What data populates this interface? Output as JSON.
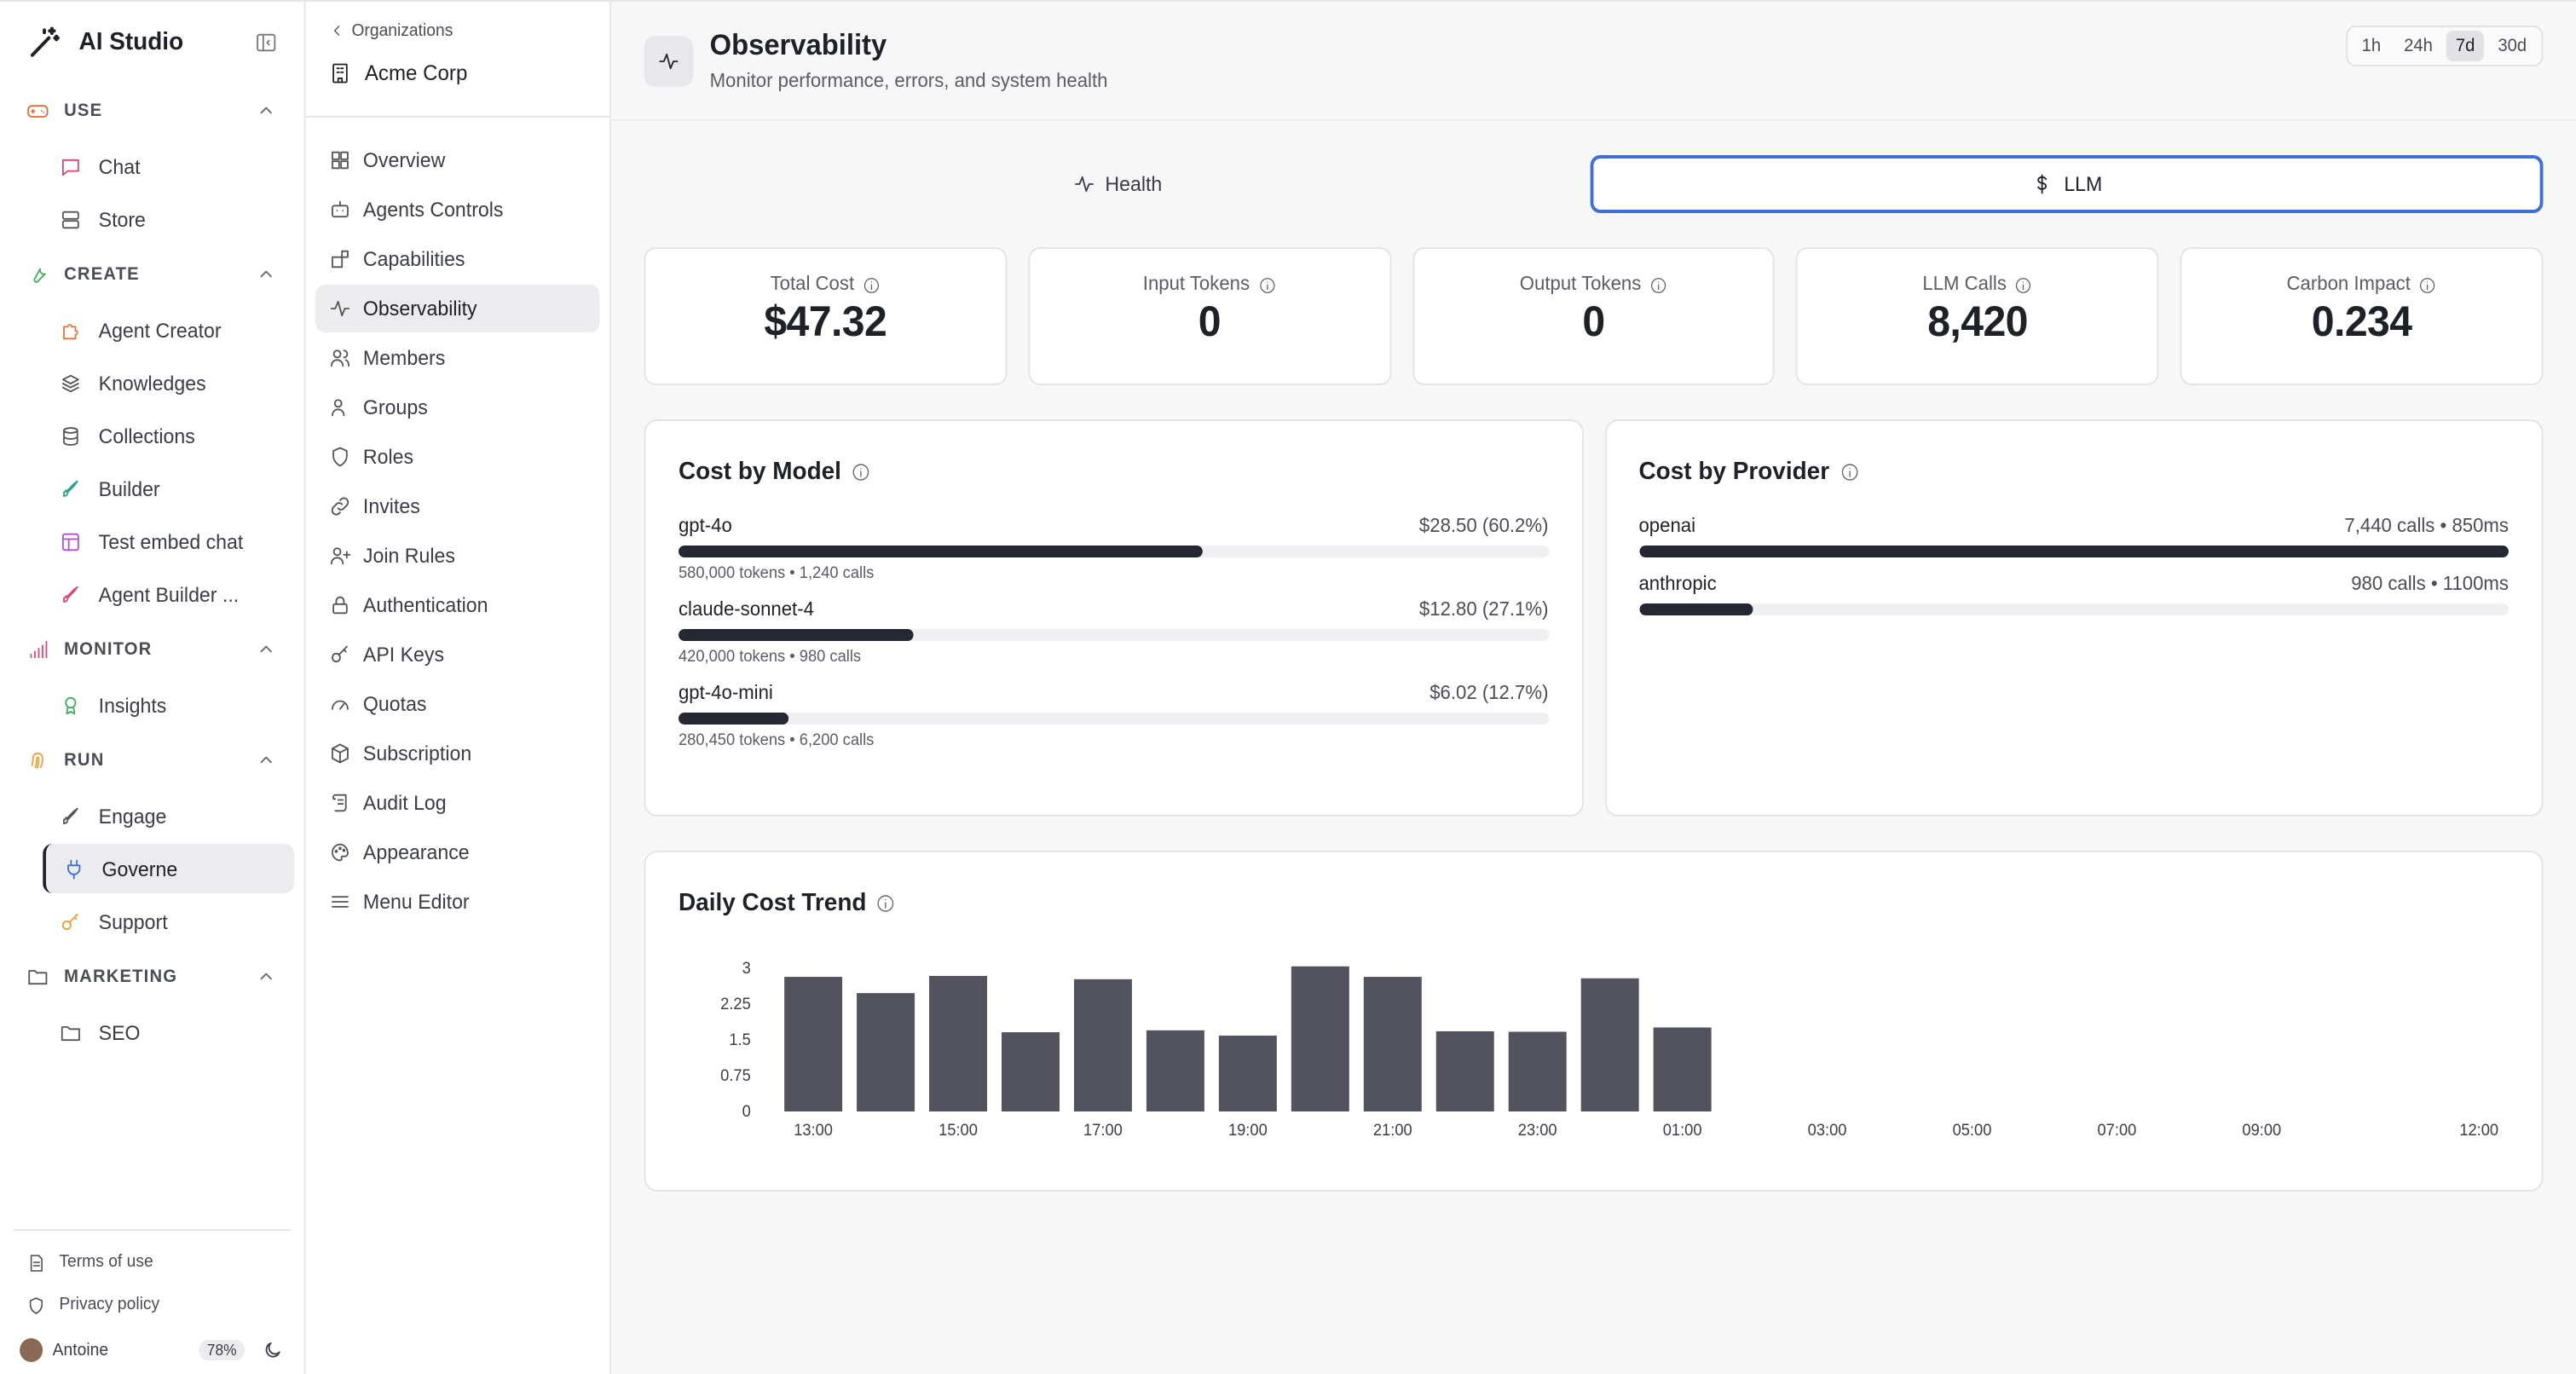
{
  "app": {
    "name": "AI Studio",
    "groups": [
      {
        "label": "USE",
        "items": [
          "Chat",
          "Store"
        ]
      },
      {
        "label": "CREATE",
        "items": [
          "Agent Creator",
          "Knowledges",
          "Collections",
          "Builder",
          "Test embed chat",
          "Agent Builder ..."
        ]
      },
      {
        "label": "MONITOR",
        "items": [
          "Insights"
        ]
      },
      {
        "label": "RUN",
        "items": [
          "Engage",
          "Governe",
          "Support"
        ]
      },
      {
        "label": "MARKETING",
        "items": [
          "SEO"
        ]
      }
    ],
    "footer": {
      "terms": "Terms of use",
      "privacy": "Privacy policy",
      "user": "Antoine",
      "usage": "78%"
    }
  },
  "org": {
    "back": "Organizations",
    "name": "Acme Corp",
    "nav": [
      "Overview",
      "Agents Controls",
      "Capabilities",
      "Observability",
      "Members",
      "Groups",
      "Roles",
      "Invites",
      "Join Rules",
      "Authentication",
      "API Keys",
      "Quotas",
      "Subscription",
      "Audit Log",
      "Appearance",
      "Menu Editor"
    ]
  },
  "page": {
    "title": "Observability",
    "subtitle": "Monitor performance, errors, and system health",
    "ranges": [
      "1h",
      "24h",
      "7d",
      "30d"
    ],
    "active_range": "7d",
    "tabs": [
      "Health",
      "LLM"
    ]
  },
  "stats": [
    {
      "label": "Total Cost",
      "value": "$47.32"
    },
    {
      "label": "Input Tokens",
      "value": "0"
    },
    {
      "label": "Output Tokens",
      "value": "0"
    },
    {
      "label": "LLM Calls",
      "value": "8,420"
    },
    {
      "label": "Carbon Impact",
      "value": "0.234"
    }
  ],
  "cost_by_model": {
    "title": "Cost by Model",
    "rows": [
      {
        "name": "gpt-4o",
        "amount": "$28.50 (60.2%)",
        "share": 0.602,
        "meta": "580,000 tokens • 1,240 calls"
      },
      {
        "name": "claude-sonnet-4",
        "amount": "$12.80 (27.1%)",
        "share": 0.271,
        "meta": "420,000 tokens • 980 calls"
      },
      {
        "name": "gpt-4o-mini",
        "amount": "$6.02 (12.7%)",
        "share": 0.127,
        "meta": "280,450 tokens • 6,200 calls"
      }
    ]
  },
  "cost_by_provider": {
    "title": "Cost by Provider",
    "rows": [
      {
        "name": "openai",
        "detail": "7,440 calls • 850ms",
        "share": 1.0
      },
      {
        "name": "anthropic",
        "detail": "980 calls • 1100ms",
        "share": 0.132
      }
    ]
  },
  "chart_data": {
    "type": "bar",
    "title": "Daily Cost Trend",
    "xlabel": "",
    "ylabel": "",
    "ylim": [
      0,
      3
    ],
    "yticks": [
      "0",
      "0.75",
      "1.5",
      "2.25",
      "3"
    ],
    "categories": [
      "13:00",
      "14:00",
      "15:00",
      "16:00",
      "17:00",
      "18:00",
      "19:00",
      "20:00",
      "21:00",
      "22:00",
      "23:00",
      "00:00",
      "01:00",
      "02:00",
      "03:00",
      "04:00",
      "05:00",
      "06:00",
      "07:00",
      "08:00",
      "09:00",
      "10:00",
      "11:00",
      "12:00"
    ],
    "xtick_labels": [
      "13:00",
      "15:00",
      "17:00",
      "19:00",
      "21:00",
      "23:00",
      "01:00",
      "03:00",
      "05:00",
      "07:00",
      "09:00",
      "12:00"
    ],
    "values": [
      2.82,
      2.48,
      2.84,
      1.66,
      2.77,
      1.7,
      1.59,
      3.04,
      2.82,
      1.68,
      1.67,
      2.79,
      1.76,
      0,
      0,
      0,
      0,
      0,
      0,
      0,
      0,
      0,
      0,
      0
    ],
    "bar_color": "#52535f"
  }
}
